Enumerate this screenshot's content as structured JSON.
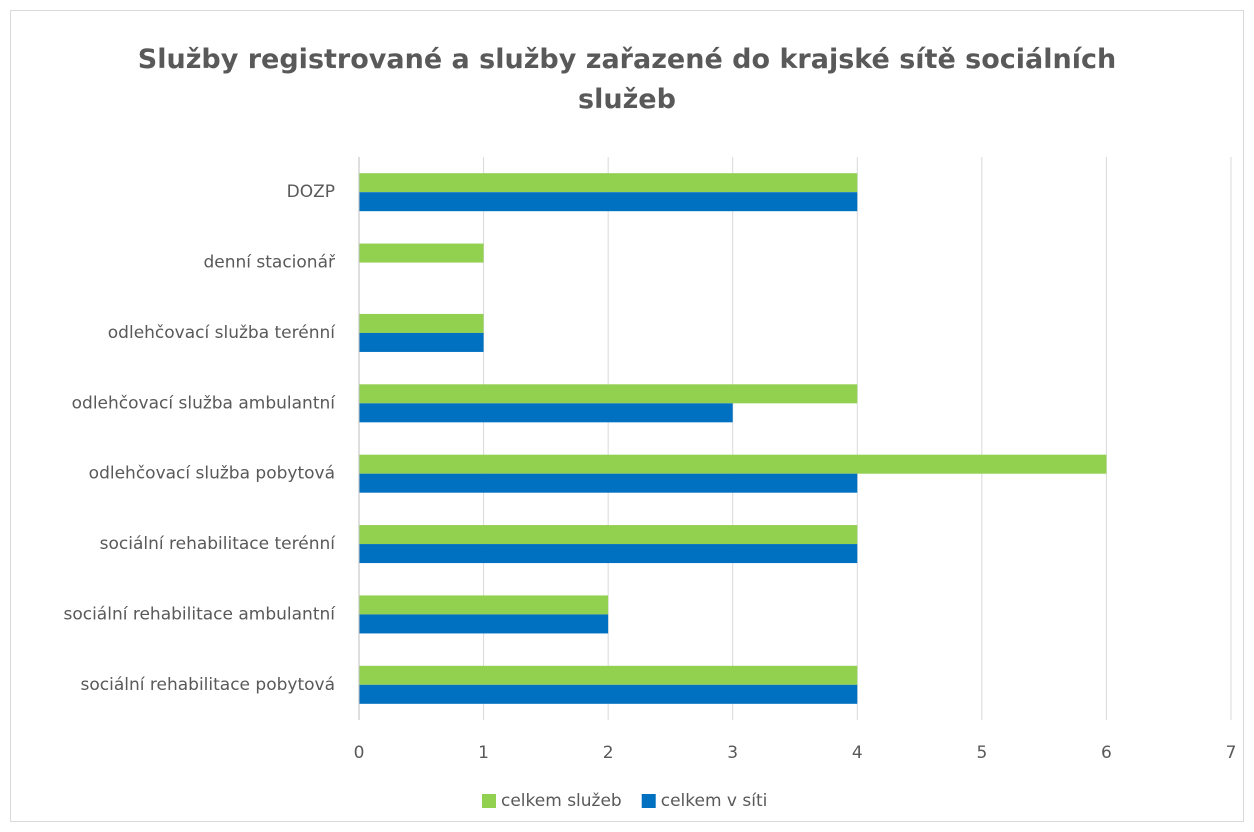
{
  "chart_data": {
    "type": "hbar",
    "title": "Služby registrované a služby zařazené do krajské sítě sociálních služeb",
    "categories": [
      "DOZP",
      "denní stacionář",
      "odlehčovací služba terénní",
      "odlehčovací služba ambulantní",
      "odlehčovací služba pobytová",
      "sociální rehabilitace terénní",
      "sociální rehabilitace ambulantní",
      "sociální rehabilitace pobytová"
    ],
    "series": [
      {
        "name": "celkem služeb",
        "color": "#92d050",
        "values": [
          4,
          1,
          1,
          4,
          6,
          4,
          2,
          4
        ]
      },
      {
        "name": "celkem v síti",
        "color": "#0070c0",
        "values": [
          4,
          0,
          1,
          3,
          4,
          4,
          2,
          4
        ]
      }
    ],
    "xlim": [
      0,
      7
    ],
    "xticks": [
      0,
      1,
      2,
      3,
      4,
      5,
      6,
      7
    ],
    "grid": true,
    "legend": "bottom"
  }
}
